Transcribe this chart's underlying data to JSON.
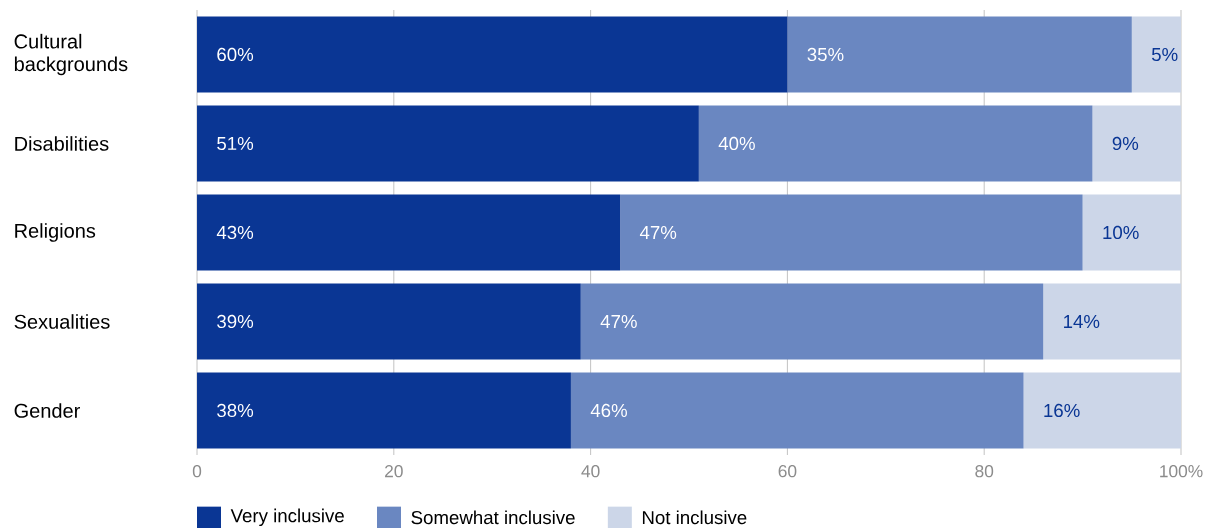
{
  "chart_data": {
    "type": "bar",
    "orientation": "horizontal",
    "stacked": true,
    "categories": [
      "Cultural backgrounds",
      "Disabilities",
      "Religions",
      "Sexualities",
      "Gender"
    ],
    "series": [
      {
        "name": "Very inclusive",
        "color": "#0a3694",
        "values": [
          60,
          51,
          43,
          39,
          38
        ],
        "value_labels": [
          "60%",
          "51%",
          "43%",
          "39%",
          "38%"
        ]
      },
      {
        "name": "Somewhat inclusive",
        "color": "#6a87c1",
        "values": [
          35,
          40,
          47,
          47,
          46
        ],
        "value_labels": [
          "35%",
          "40%",
          "47%",
          "47%",
          "46%"
        ]
      },
      {
        "name": "Not inclusive",
        "color": "#ccd6e8",
        "values": [
          5,
          9,
          10,
          14,
          16
        ],
        "value_labels": [
          "5%",
          "9%",
          "10%",
          "14%",
          "16%"
        ]
      }
    ],
    "xlim": [
      0,
      100
    ],
    "xticks": [
      0,
      20,
      40,
      60,
      80,
      {
        "value": 100,
        "label": "100%"
      }
    ],
    "grid": "x",
    "legend": "bottom left"
  }
}
